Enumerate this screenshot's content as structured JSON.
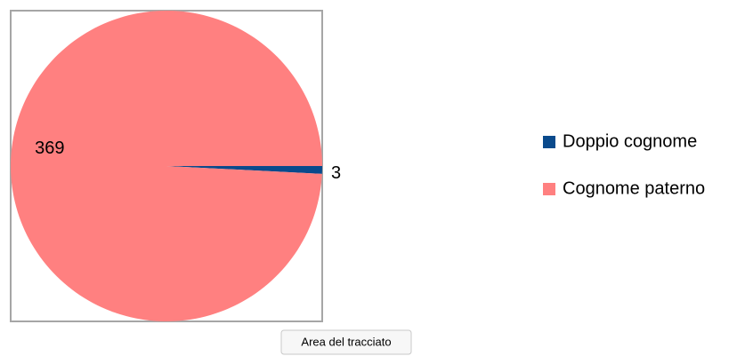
{
  "chart_data": {
    "type": "pie",
    "categories": [
      "Doppio cognome",
      "Cognome paterno"
    ],
    "values": [
      3,
      369
    ],
    "colors": [
      "#0a4a8c",
      "#ff8080"
    ],
    "legend": "right",
    "tooltip": "Area del tracciato"
  }
}
